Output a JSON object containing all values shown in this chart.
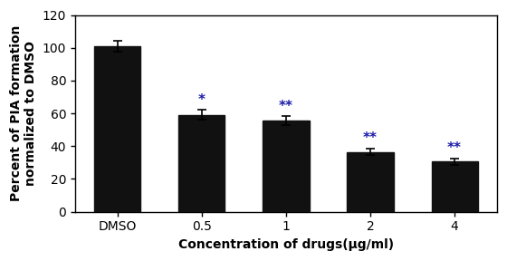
{
  "categories": [
    "DMSO",
    "0.5",
    "1",
    "2",
    "4"
  ],
  "values": [
    101.0,
    59.0,
    55.5,
    36.5,
    30.5
  ],
  "errors": [
    3.5,
    3.0,
    2.8,
    2.0,
    2.0
  ],
  "bar_color": "#111111",
  "significance": [
    "",
    "*",
    "**",
    "**",
    "**"
  ],
  "sig_color": "#1a1aaa",
  "xlabel": "Concentration of drugs(μg/ml)",
  "ylabel": "Percent of PIA formation\nnormalized to DMSO",
  "ylim": [
    0,
    120
  ],
  "yticks": [
    0,
    20,
    40,
    60,
    80,
    100,
    120
  ],
  "title": "",
  "sig_fontsize": 11,
  "label_fontsize": 10,
  "tick_fontsize": 10,
  "bar_width": 0.55,
  "background_color": "#ffffff",
  "border_color": "#aaaaaa"
}
